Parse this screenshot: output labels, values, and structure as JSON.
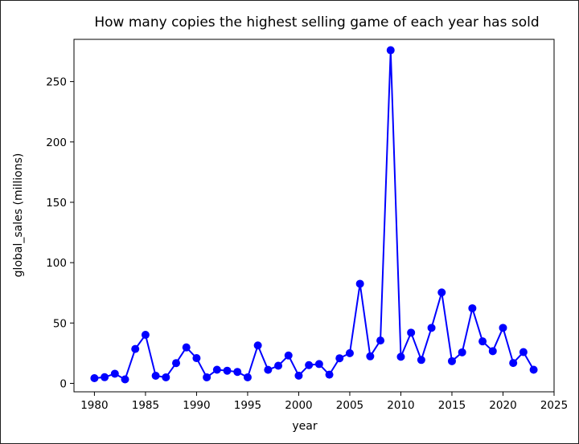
{
  "chart_data": {
    "type": "line",
    "title": "How many copies the highest selling game of each year has sold",
    "xlabel": "year",
    "ylabel": "global_sales (millions)",
    "xlim": [
      1978,
      2025
    ],
    "ylim": [
      -7,
      285
    ],
    "xticks": [
      1980,
      1985,
      1990,
      1995,
      2000,
      2005,
      2010,
      2015,
      2020,
      2025
    ],
    "yticks": [
      0,
      50,
      100,
      150,
      200,
      250
    ],
    "grid": false,
    "legend": false,
    "series": [
      {
        "color": "#0000ff",
        "marker": "circle",
        "x": [
          1980,
          1981,
          1982,
          1983,
          1984,
          1985,
          1986,
          1987,
          1988,
          1989,
          1990,
          1991,
          1992,
          1993,
          1994,
          1995,
          1996,
          1997,
          1998,
          1999,
          2000,
          2001,
          2002,
          2003,
          2004,
          2005,
          2006,
          2007,
          2008,
          2009,
          2010,
          2011,
          2012,
          2013,
          2014,
          2015,
          2016,
          2017,
          2018,
          2019,
          2020,
          2021,
          2022,
          2023
        ],
        "y": [
          4.3,
          5.1,
          8,
          3.3,
          28.5,
          40.2,
          6.3,
          5,
          16.8,
          29.8,
          20.9,
          5,
          11.3,
          10.5,
          9.5,
          5,
          31.4,
          11.2,
          14.6,
          23.1,
          6.4,
          15.1,
          16,
          7.2,
          20.8,
          25,
          82.5,
          22.4,
          35.5,
          276,
          22,
          42,
          19.4,
          46,
          75.3,
          18.4,
          25.7,
          62.2,
          34.8,
          26.7,
          46,
          16.9,
          25.9,
          11.3
        ]
      }
    ]
  }
}
